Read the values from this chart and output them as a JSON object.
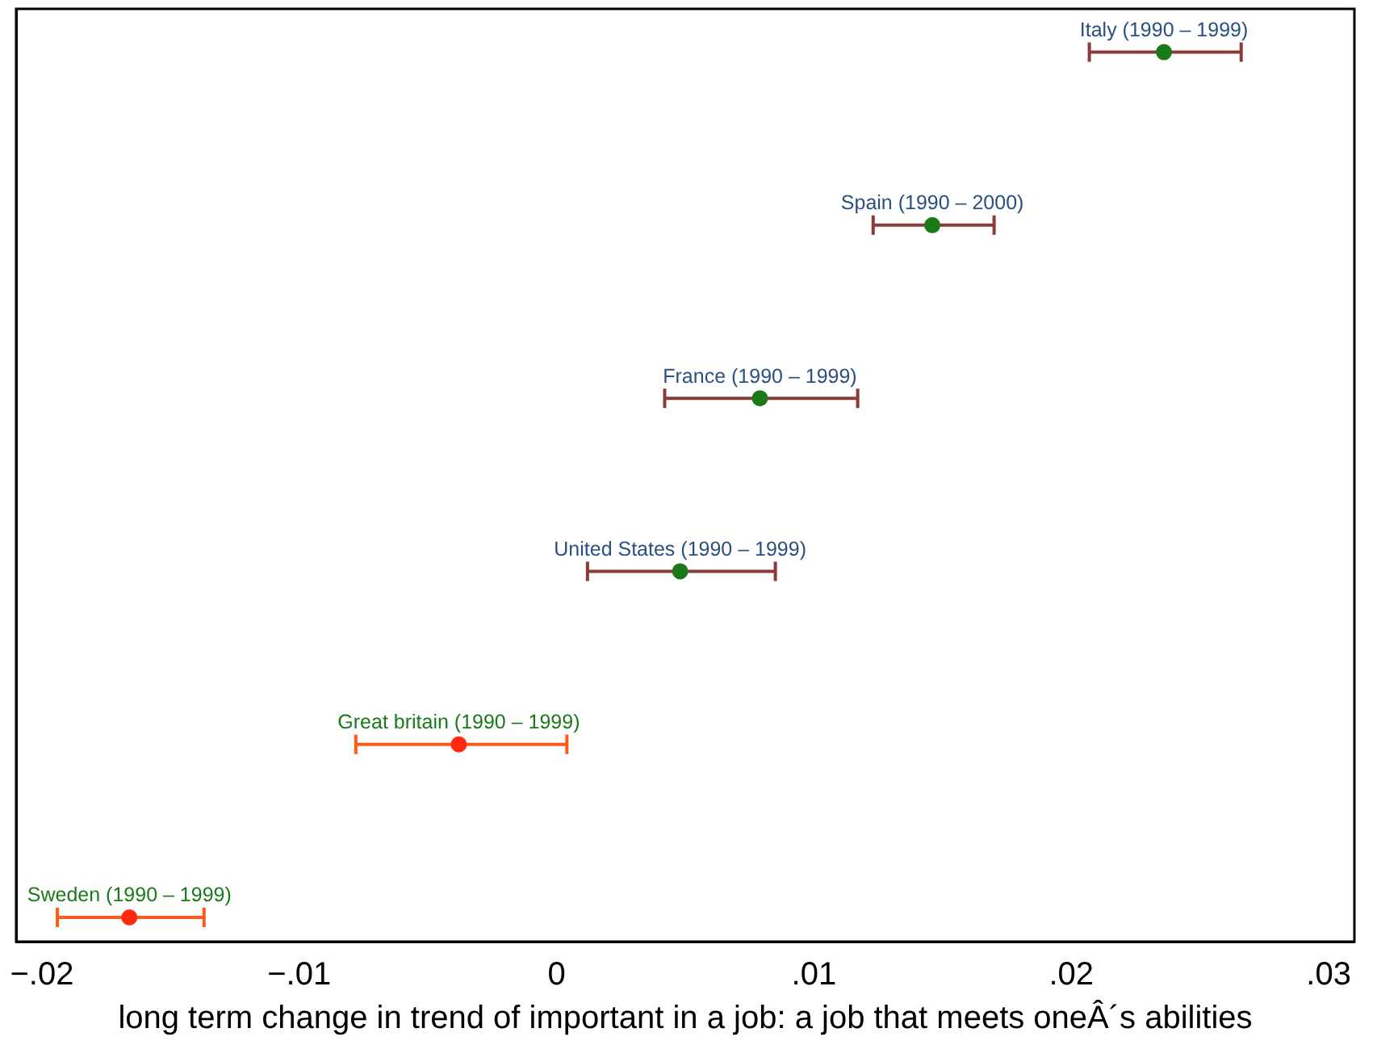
{
  "chart_data": {
    "type": "scatter",
    "orientation": "horizontal",
    "xlabel": "long term change in trend of important in a job: a job that meets oneÂ´s abilities",
    "categories": [
      "Italy (1990 – 1999)",
      "Spain (1990 – 2000)",
      "France (1990 – 1999)",
      "United States (1990 – 1999)",
      "Great britain (1990 – 1999)",
      "Sweden (1990 – 1999)"
    ],
    "series": [
      {
        "color": "#1a7a1a",
        "values": [
          0.0236,
          0.0146,
          0.0079,
          0.0048,
          null,
          null
        ],
        "errors": [
          [
            0.0207,
            0.0266
          ],
          [
            0.0123,
            0.017
          ],
          [
            0.0042,
            0.0117
          ],
          [
            0.0012,
            0.0085
          ],
          null,
          null
        ]
      },
      {
        "color": "#ff2a10",
        "values": [
          null,
          null,
          null,
          null,
          -0.0038,
          -0.0166
        ],
        "errors": [
          null,
          null,
          null,
          null,
          [
            -0.0078,
            0.0004
          ],
          [
            -0.0194,
            -0.0137
          ]
        ]
      }
    ],
    "xlim": [
      -0.021,
      0.031
    ],
    "xticks": [
      {
        "value": -0.02,
        "label": "−.02"
      },
      {
        "value": -0.01,
        "label": "−.01"
      },
      0,
      {
        "value": 0.01,
        "label": ".01"
      },
      {
        "value": 0.02,
        "label": ".02"
      },
      {
        "value": 0.03,
        "label": ".03"
      }
    ],
    "tick_labels": "x",
    "grid": false,
    "legend": false,
    "marker": "circle"
  }
}
